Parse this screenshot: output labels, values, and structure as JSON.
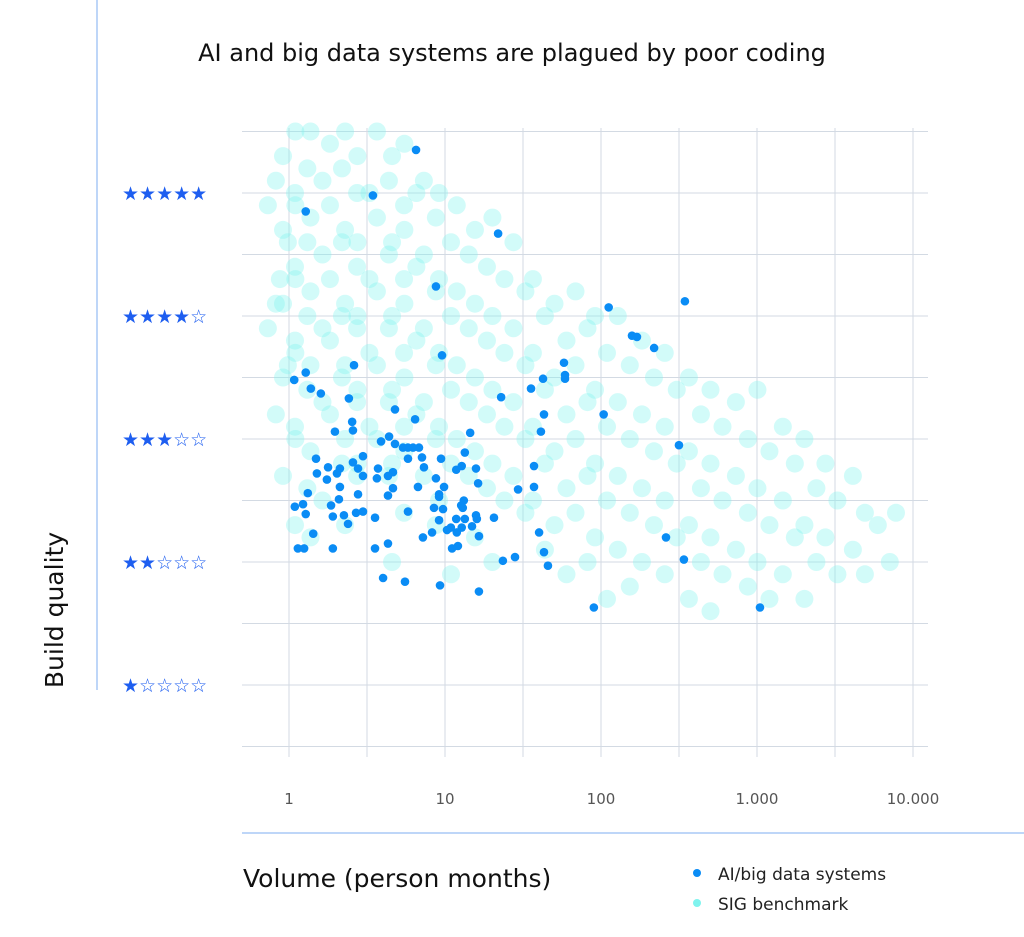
{
  "chart_data": {
    "type": "scatter",
    "title": "AI and big data systems are plagued by poor coding",
    "xlabel": "Volume (person months)",
    "ylabel": "Build quality",
    "xscale": "log",
    "xlim": [
      0.7,
      12000
    ],
    "ylim": [
      0.5,
      5.5
    ],
    "grid": true,
    "legend_position": "bottom-right",
    "x_ticks": [
      {
        "value": 1,
        "label": "1"
      },
      {
        "value": 10,
        "label": "10"
      },
      {
        "value": 100,
        "label": "100"
      },
      {
        "value": 1000,
        "label": "1.000"
      },
      {
        "value": 10000,
        "label": "10.000"
      }
    ],
    "y_ticks": [
      {
        "value": 5,
        "label": "★★★★★"
      },
      {
        "value": 4,
        "label": "★★★★☆"
      },
      {
        "value": 3,
        "label": "★★★☆☆"
      },
      {
        "value": 2,
        "label": "★★☆☆☆"
      },
      {
        "value": 1,
        "label": "★☆☆☆☆"
      }
    ],
    "colors": {
      "ai": "#0a8cf5",
      "benchmark": "#7ff3ee",
      "stars": "#1e5ef0",
      "axis_line": "#a9c8f5",
      "grid": "#d3dae3"
    },
    "series": [
      {
        "name": "AI/big data systems",
        "points": [
          [
            2.61,
            3.6
          ],
          [
            1.28,
            3.54
          ],
          [
            1.08,
            3.48
          ],
          [
            1.38,
            3.41
          ],
          [
            1.6,
            3.37
          ],
          [
            2.42,
            3.33
          ],
          [
            22.9,
            3.34
          ],
          [
            4.78,
            3.24
          ],
          [
            6.43,
            3.16
          ],
          [
            2.54,
            3.14
          ],
          [
            2.57,
            3.07
          ],
          [
            1.97,
            3.06
          ],
          [
            14.5,
            3.05
          ],
          [
            4.38,
            3.02
          ],
          [
            3.89,
            2.98
          ],
          [
            4.78,
            2.96
          ],
          [
            5.38,
            2.93
          ],
          [
            5.79,
            2.93
          ],
          [
            6.24,
            2.93
          ],
          [
            6.81,
            2.93
          ],
          [
            13.4,
            2.89
          ],
          [
            2.98,
            2.86
          ],
          [
            7.12,
            2.85
          ],
          [
            9.43,
            2.84
          ],
          [
            5.79,
            2.84
          ],
          [
            1.49,
            2.84
          ],
          [
            2.57,
            2.81
          ],
          [
            1.78,
            2.77
          ],
          [
            2.12,
            2.76
          ],
          [
            2.77,
            2.76
          ],
          [
            3.72,
            2.76
          ],
          [
            7.33,
            2.77
          ],
          [
            11.8,
            2.75
          ],
          [
            12.8,
            2.78
          ],
          [
            15.8,
            2.76
          ],
          [
            2.03,
            2.72
          ],
          [
            1.51,
            2.72
          ],
          [
            4.64,
            2.73
          ],
          [
            2.98,
            2.7
          ],
          [
            3.66,
            2.68
          ],
          [
            4.31,
            2.7
          ],
          [
            8.75,
            2.68
          ],
          [
            1.75,
            2.67
          ],
          [
            16.3,
            2.64
          ],
          [
            2.12,
            2.61
          ],
          [
            4.64,
            2.6
          ],
          [
            6.71,
            2.61
          ],
          [
            9.86,
            2.61
          ],
          [
            1.32,
            2.56
          ],
          [
            2.77,
            2.55
          ],
          [
            9.16,
            2.55
          ],
          [
            9.16,
            2.53
          ],
          [
            4.31,
            2.54
          ],
          [
            2.09,
            2.51
          ],
          [
            13.2,
            2.5
          ],
          [
            1.09,
            2.45
          ],
          [
            1.23,
            2.47
          ],
          [
            1.86,
            2.46
          ],
          [
            12.7,
            2.46
          ],
          [
            13.0,
            2.44
          ],
          [
            8.5,
            2.44
          ],
          [
            9.71,
            2.43
          ],
          [
            5.79,
            2.41
          ],
          [
            2.98,
            2.41
          ],
          [
            2.69,
            2.4
          ],
          [
            1.28,
            2.39
          ],
          [
            2.25,
            2.38
          ],
          [
            1.91,
            2.37
          ],
          [
            3.56,
            2.36
          ],
          [
            11.8,
            2.35
          ],
          [
            13.4,
            2.35
          ],
          [
            15.8,
            2.38
          ],
          [
            16.0,
            2.35
          ],
          [
            9.16,
            2.34
          ],
          [
            20.6,
            2.36
          ],
          [
            2.39,
            2.31
          ],
          [
            14.9,
            2.29
          ],
          [
            10.3,
            2.26
          ],
          [
            10.9,
            2.28
          ],
          [
            11.9,
            2.24
          ],
          [
            12.8,
            2.28
          ],
          [
            8.26,
            2.24
          ],
          [
            16.5,
            2.21
          ],
          [
            1.43,
            2.23
          ],
          [
            7.22,
            2.2
          ],
          [
            1.14,
            2.11
          ],
          [
            1.25,
            2.11
          ],
          [
            1.91,
            2.11
          ],
          [
            3.56,
            2.11
          ],
          [
            4.31,
            2.15
          ],
          [
            11.1,
            2.11
          ],
          [
            12.1,
            2.13
          ],
          [
            23.5,
            2.01
          ],
          [
            28.1,
            2.04
          ],
          [
            4.01,
            1.87
          ],
          [
            5.54,
            1.84
          ],
          [
            9.29,
            1.81
          ],
          [
            16.5,
            1.76
          ],
          [
            29.4,
            2.59
          ],
          [
            345,
            4.12
          ],
          [
            112,
            4.07
          ],
          [
            158,
            3.84
          ],
          [
            170,
            3.83
          ],
          [
            219,
            3.74
          ],
          [
            57.9,
            3.62
          ],
          [
            58.8,
            3.52
          ],
          [
            58.8,
            3.49
          ],
          [
            42.5,
            3.49
          ],
          [
            35.6,
            3.41
          ],
          [
            43.1,
            3.2
          ],
          [
            104,
            3.2
          ],
          [
            41.2,
            3.06
          ],
          [
            316,
            2.95
          ],
          [
            37.2,
            2.78
          ],
          [
            37.2,
            2.61
          ],
          [
            40.1,
            2.24
          ],
          [
            261,
            2.2
          ],
          [
            43.1,
            2.08
          ],
          [
            45.7,
            1.97
          ],
          [
            340,
            2.02
          ],
          [
            90,
            1.63
          ],
          [
            1045,
            1.63
          ],
          [
            6.52,
            5.35
          ],
          [
            3.45,
            4.98
          ],
          [
            1.28,
            4.85
          ],
          [
            21.9,
            4.67
          ],
          [
            8.75,
            4.24
          ],
          [
            9.57,
            3.68
          ]
        ]
      },
      {
        "name": "SIG benchmark",
        "columns": [
          {
            "x": 0.8,
            "y": [
              4.9,
              4.3,
              3.9
            ]
          },
          {
            "x": 0.9,
            "y": [
              5.1,
              4.6,
              4.1,
              3.6,
              3.2
            ]
          },
          {
            "x": 1.0,
            "y": [
              5.3,
              5.0,
              4.7,
              4.4,
              4.1,
              3.8,
              3.5,
              3.1,
              2.7,
              2.3
            ]
          },
          {
            "x": 1.2,
            "y": [
              5.5,
              5.2,
              4.9,
              4.6,
              4.3,
              4.0,
              3.7,
              3.4,
              3.0,
              2.6
            ]
          },
          {
            "x": 1.5,
            "y": [
              5.5,
              5.1,
              4.8,
              4.5,
              4.2,
              3.9,
              3.6,
              3.3,
              2.9,
              2.5,
              2.2
            ]
          },
          {
            "x": 2,
            "y": [
              5.4,
              5.2,
              4.9,
              4.6,
              4.3,
              4.0,
              3.8,
              3.5,
              3.2,
              2.8
            ]
          },
          {
            "x": 2.5,
            "y": [
              5.5,
              5.0,
              4.7,
              4.4,
              4.1,
              3.9,
              3.6,
              3.3,
              3.0,
              2.7,
              2.3
            ]
          },
          {
            "x": 3,
            "y": [
              5.3,
              5.0,
              4.6,
              4.3,
              4.0,
              3.7,
              3.4,
              3.1,
              2.8
            ]
          },
          {
            "x": 4,
            "y": [
              5.5,
              5.1,
              4.8,
              4.5,
              4.2,
              3.9,
              3.6,
              3.3,
              3.0,
              2.7
            ]
          },
          {
            "x": 5,
            "y": [
              5.3,
              4.9,
              4.6,
              4.3,
              4.0,
              3.7,
              3.4,
              3.1,
              2.8,
              2.4,
              2.0
            ]
          },
          {
            "x": 6,
            "y": [
              5.4,
              5.0,
              4.7,
              4.4,
              4.1,
              3.8,
              3.5,
              3.2,
              2.9
            ]
          },
          {
            "x": 8,
            "y": [
              5.1,
              4.8,
              4.5,
              4.2,
              3.9,
              3.6,
              3.3,
              3.0,
              2.7,
              2.3
            ]
          },
          {
            "x": 10,
            "y": [
              5.0,
              4.6,
              4.3,
              4.0,
              3.7,
              3.4,
              3.1,
              2.8,
              2.5,
              1.9
            ]
          },
          {
            "x": 13,
            "y": [
              4.9,
              4.5,
              4.2,
              3.9,
              3.6,
              3.3,
              3.0,
              2.7
            ]
          },
          {
            "x": 17,
            "y": [
              4.7,
              4.4,
              4.1,
              3.8,
              3.5,
              3.2,
              2.9,
              2.6,
              2.2
            ]
          },
          {
            "x": 22,
            "y": [
              4.8,
              4.3,
              4.0,
              3.7,
              3.4,
              3.1,
              2.8,
              2.5,
              2.0
            ]
          },
          {
            "x": 30,
            "y": [
              4.6,
              4.2,
              3.9,
              3.6,
              3.3,
              3.0,
              2.7,
              2.4
            ]
          },
          {
            "x": 40,
            "y": [
              4.3,
              4.0,
              3.7,
              3.4,
              3.1,
              2.8,
              2.5,
              2.1
            ]
          },
          {
            "x": 55,
            "y": [
              4.1,
              3.8,
              3.5,
              3.2,
              2.9,
              2.6,
              2.3,
              1.9
            ]
          },
          {
            "x": 75,
            "y": [
              4.2,
              3.9,
              3.6,
              3.3,
              3.0,
              2.7,
              2.4,
              2.0
            ]
          },
          {
            "x": 100,
            "y": [
              4.0,
              3.7,
              3.4,
              3.1,
              2.8,
              2.5,
              2.2,
              1.7
            ]
          },
          {
            "x": 140,
            "y": [
              4.0,
              3.6,
              3.3,
              3.0,
              2.7,
              2.4,
              2.1,
              1.8
            ]
          },
          {
            "x": 200,
            "y": [
              3.8,
              3.5,
              3.2,
              2.9,
              2.6,
              2.3,
              2.0
            ]
          },
          {
            "x": 280,
            "y": [
              3.7,
              3.4,
              3.1,
              2.8,
              2.5,
              2.2,
              1.9
            ]
          },
          {
            "x": 400,
            "y": [
              3.5,
              3.2,
              2.9,
              2.6,
              2.3,
              2.0,
              1.7
            ]
          },
          {
            "x": 550,
            "y": [
              3.4,
              3.1,
              2.8,
              2.5,
              2.2,
              1.9,
              1.6
            ]
          },
          {
            "x": 800,
            "y": [
              3.3,
              3.0,
              2.7,
              2.4,
              2.1,
              1.8
            ]
          },
          {
            "x": 1100,
            "y": [
              3.4,
              2.9,
              2.6,
              2.3,
              2.0,
              1.7
            ]
          },
          {
            "x": 1600,
            "y": [
              3.1,
              2.8,
              2.5,
              2.2,
              1.9
            ]
          },
          {
            "x": 2200,
            "y": [
              3.0,
              2.6,
              2.3,
              2.0,
              1.7
            ]
          },
          {
            "x": 3000,
            "y": [
              2.8,
              2.5,
              2.2,
              1.9
            ]
          },
          {
            "x": 4500,
            "y": [
              2.7,
              2.4,
              2.1,
              1.9
            ]
          },
          {
            "x": 6500,
            "y": [
              2.3,
              2.0
            ]
          },
          {
            "x": 8500,
            "y": [
              2.4
            ]
          }
        ]
      }
    ]
  }
}
